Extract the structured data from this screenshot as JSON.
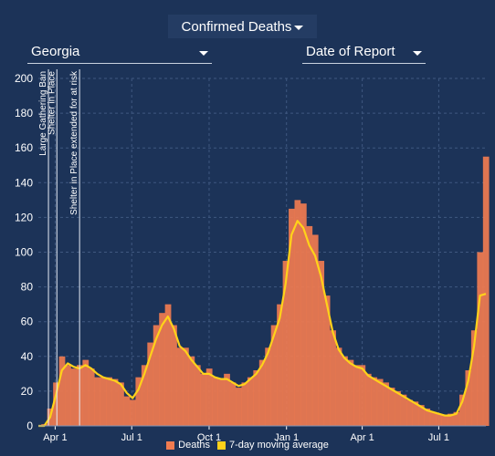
{
  "controls": {
    "metric": "Confirmed Deaths",
    "state": "Georgia",
    "date_basis": "Date of Report"
  },
  "colors": {
    "background": "#1c3358",
    "bars": "#f07b50",
    "average": "#ffd21a",
    "grid": "#3f5880",
    "text": "#ffffff"
  },
  "chart_data": {
    "type": "bar",
    "x_range": [
      "2020-03-12",
      "2021-08-26"
    ],
    "ylim": [
      0,
      200
    ],
    "y_ticks": [
      0,
      20,
      40,
      60,
      80,
      100,
      120,
      140,
      160,
      180,
      200
    ],
    "x_ticks": [
      {
        "date": "2020-04-01",
        "label": "Apr 1"
      },
      {
        "date": "2020-07-01",
        "label": "Jul 1"
      },
      {
        "date": "2020-10-01",
        "label": "Oct 1"
      },
      {
        "date": "2021-01-01",
        "label": "Jan 1"
      },
      {
        "date": "2021-04-01",
        "label": "Apr 1"
      },
      {
        "date": "2021-07-01",
        "label": "Jul 1"
      }
    ],
    "grid": true,
    "legend_position": "bottom",
    "annotations": [
      {
        "date": "2020-03-24",
        "label": "Large Gathering Ban"
      },
      {
        "date": "2020-04-03",
        "label": "Shelter in Place"
      },
      {
        "date": "2020-04-30",
        "label": "Shelter in Place extended for at risk"
      }
    ],
    "series": [
      {
        "name": "Deaths",
        "points": [
          [
            "2020-03-12",
            0
          ],
          [
            "2020-03-19",
            1
          ],
          [
            "2020-03-26",
            10
          ],
          [
            "2020-04-02",
            25
          ],
          [
            "2020-04-09",
            40
          ],
          [
            "2020-04-16",
            35
          ],
          [
            "2020-04-23",
            33
          ],
          [
            "2020-04-30",
            35
          ],
          [
            "2020-05-07",
            38
          ],
          [
            "2020-05-14",
            33
          ],
          [
            "2020-05-21",
            28
          ],
          [
            "2020-05-28",
            28
          ],
          [
            "2020-06-04",
            28
          ],
          [
            "2020-06-11",
            27
          ],
          [
            "2020-06-18",
            25
          ],
          [
            "2020-06-25",
            17
          ],
          [
            "2020-07-02",
            15
          ],
          [
            "2020-07-09",
            28
          ],
          [
            "2020-07-16",
            35
          ],
          [
            "2020-07-23",
            48
          ],
          [
            "2020-07-30",
            58
          ],
          [
            "2020-08-06",
            65
          ],
          [
            "2020-08-13",
            70
          ],
          [
            "2020-08-20",
            58
          ],
          [
            "2020-08-27",
            45
          ],
          [
            "2020-09-03",
            45
          ],
          [
            "2020-09-10",
            40
          ],
          [
            "2020-09-17",
            35
          ],
          [
            "2020-09-24",
            30
          ],
          [
            "2020-10-01",
            33
          ],
          [
            "2020-10-08",
            28
          ],
          [
            "2020-10-15",
            27
          ],
          [
            "2020-10-22",
            30
          ],
          [
            "2020-10-29",
            25
          ],
          [
            "2020-11-05",
            22
          ],
          [
            "2020-11-12",
            25
          ],
          [
            "2020-11-19",
            28
          ],
          [
            "2020-11-26",
            32
          ],
          [
            "2020-12-03",
            38
          ],
          [
            "2020-12-10",
            45
          ],
          [
            "2020-12-17",
            58
          ],
          [
            "2020-12-24",
            70
          ],
          [
            "2020-12-31",
            95
          ],
          [
            "2021-01-07",
            125
          ],
          [
            "2021-01-14",
            130
          ],
          [
            "2021-01-21",
            128
          ],
          [
            "2021-01-28",
            115
          ],
          [
            "2021-02-04",
            110
          ],
          [
            "2021-02-11",
            95
          ],
          [
            "2021-02-18",
            75
          ],
          [
            "2021-02-25",
            55
          ],
          [
            "2021-03-04",
            45
          ],
          [
            "2021-03-11",
            40
          ],
          [
            "2021-03-18",
            38
          ],
          [
            "2021-03-25",
            35
          ],
          [
            "2021-04-01",
            35
          ],
          [
            "2021-04-08",
            30
          ],
          [
            "2021-04-15",
            28
          ],
          [
            "2021-04-22",
            27
          ],
          [
            "2021-04-29",
            25
          ],
          [
            "2021-05-06",
            22
          ],
          [
            "2021-05-13",
            20
          ],
          [
            "2021-05-20",
            18
          ],
          [
            "2021-05-27",
            15
          ],
          [
            "2021-06-03",
            14
          ],
          [
            "2021-06-10",
            12
          ],
          [
            "2021-06-17",
            10
          ],
          [
            "2021-06-24",
            8
          ],
          [
            "2021-07-01",
            7
          ],
          [
            "2021-07-08",
            6
          ],
          [
            "2021-07-15",
            7
          ],
          [
            "2021-07-22",
            8
          ],
          [
            "2021-07-29",
            18
          ],
          [
            "2021-08-05",
            32
          ],
          [
            "2021-08-12",
            55
          ],
          [
            "2021-08-19",
            100
          ],
          [
            "2021-08-26",
            155
          ]
        ]
      },
      {
        "name": "7-day moving average",
        "points": [
          [
            "2020-03-12",
            0
          ],
          [
            "2020-03-19",
            0
          ],
          [
            "2020-03-26",
            5
          ],
          [
            "2020-04-02",
            18
          ],
          [
            "2020-04-09",
            32
          ],
          [
            "2020-04-16",
            36
          ],
          [
            "2020-04-23",
            34
          ],
          [
            "2020-04-30",
            33
          ],
          [
            "2020-05-07",
            35
          ],
          [
            "2020-05-14",
            33
          ],
          [
            "2020-05-21",
            30
          ],
          [
            "2020-05-28",
            28
          ],
          [
            "2020-06-04",
            27
          ],
          [
            "2020-06-11",
            26
          ],
          [
            "2020-06-18",
            24
          ],
          [
            "2020-06-25",
            19
          ],
          [
            "2020-07-02",
            16
          ],
          [
            "2020-07-09",
            21
          ],
          [
            "2020-07-16",
            30
          ],
          [
            "2020-07-23",
            40
          ],
          [
            "2020-07-30",
            50
          ],
          [
            "2020-08-06",
            58
          ],
          [
            "2020-08-13",
            63
          ],
          [
            "2020-08-20",
            56
          ],
          [
            "2020-08-27",
            46
          ],
          [
            "2020-09-03",
            43
          ],
          [
            "2020-09-10",
            38
          ],
          [
            "2020-09-17",
            34
          ],
          [
            "2020-09-24",
            30
          ],
          [
            "2020-10-01",
            30
          ],
          [
            "2020-10-08",
            28
          ],
          [
            "2020-10-15",
            27
          ],
          [
            "2020-10-22",
            27
          ],
          [
            "2020-10-29",
            25
          ],
          [
            "2020-11-05",
            23
          ],
          [
            "2020-11-12",
            24
          ],
          [
            "2020-11-19",
            27
          ],
          [
            "2020-11-26",
            30
          ],
          [
            "2020-12-03",
            35
          ],
          [
            "2020-12-10",
            42
          ],
          [
            "2020-12-17",
            52
          ],
          [
            "2020-12-24",
            62
          ],
          [
            "2020-12-31",
            82
          ],
          [
            "2021-01-07",
            110
          ],
          [
            "2021-01-14",
            118
          ],
          [
            "2021-01-21",
            114
          ],
          [
            "2021-01-28",
            104
          ],
          [
            "2021-02-04",
            98
          ],
          [
            "2021-02-11",
            86
          ],
          [
            "2021-02-18",
            70
          ],
          [
            "2021-02-25",
            54
          ],
          [
            "2021-03-04",
            44
          ],
          [
            "2021-03-11",
            39
          ],
          [
            "2021-03-18",
            36
          ],
          [
            "2021-03-25",
            34
          ],
          [
            "2021-04-01",
            33
          ],
          [
            "2021-04-08",
            29
          ],
          [
            "2021-04-15",
            27
          ],
          [
            "2021-04-22",
            25
          ],
          [
            "2021-04-29",
            23
          ],
          [
            "2021-05-06",
            21
          ],
          [
            "2021-05-13",
            19
          ],
          [
            "2021-05-20",
            17
          ],
          [
            "2021-05-27",
            15
          ],
          [
            "2021-06-03",
            13
          ],
          [
            "2021-06-10",
            11
          ],
          [
            "2021-06-17",
            9
          ],
          [
            "2021-06-24",
            8
          ],
          [
            "2021-07-01",
            7
          ],
          [
            "2021-07-08",
            6
          ],
          [
            "2021-07-15",
            6
          ],
          [
            "2021-07-22",
            7
          ],
          [
            "2021-07-29",
            14
          ],
          [
            "2021-08-05",
            26
          ],
          [
            "2021-08-12",
            46
          ],
          [
            "2021-08-19",
            75
          ],
          [
            "2021-08-26",
            76
          ]
        ]
      }
    ]
  }
}
